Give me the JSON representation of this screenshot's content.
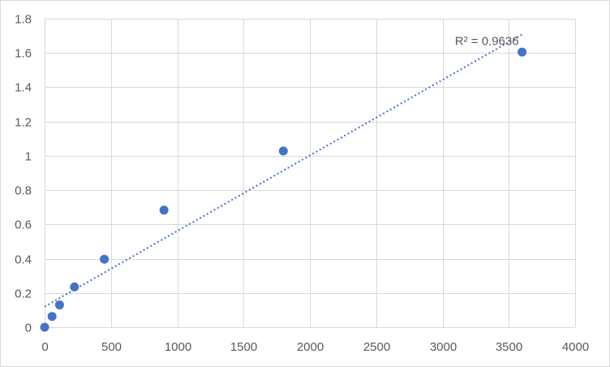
{
  "chart_data": {
    "type": "scatter",
    "title": "",
    "xlabel": "",
    "ylabel": "",
    "xlim": [
      0,
      4000
    ],
    "ylim": [
      0,
      1.8
    ],
    "x_ticks": [
      0,
      500,
      1000,
      1500,
      2000,
      2500,
      3000,
      3500,
      4000
    ],
    "y_ticks": [
      0,
      0.2,
      0.4,
      0.6,
      0.8,
      1,
      1.2,
      1.4,
      1.6,
      1.8
    ],
    "x_tick_labels": [
      "0",
      "500",
      "1000",
      "1500",
      "2000",
      "2500",
      "3000",
      "3500",
      "4000"
    ],
    "y_tick_labels": [
      "0",
      "0.2",
      "0.4",
      "0.6",
      "0.8",
      "1",
      "1.2",
      "1.4",
      "1.6",
      "1.8"
    ],
    "grid": true,
    "legend": "none",
    "series": [
      {
        "x": [
          0,
          56.25,
          112.5,
          225,
          450,
          900,
          1800,
          3600
        ],
        "y": [
          0,
          0.063,
          0.13,
          0.235,
          0.397,
          0.683,
          1.028,
          1.605
        ],
        "color": "#4472C4",
        "marker": "circle"
      }
    ],
    "trendline": {
      "type": "linear",
      "style": "dotted",
      "color": "#4472C4",
      "x_range": [
        0,
        3600
      ],
      "intercept": 0.12,
      "slope": 0.000441,
      "label": "R² = 0.9636"
    }
  },
  "colors": {
    "background": "#FFFFFF",
    "grid": "#D9D9D9",
    "text": "#595959",
    "series": "#4472C4"
  }
}
